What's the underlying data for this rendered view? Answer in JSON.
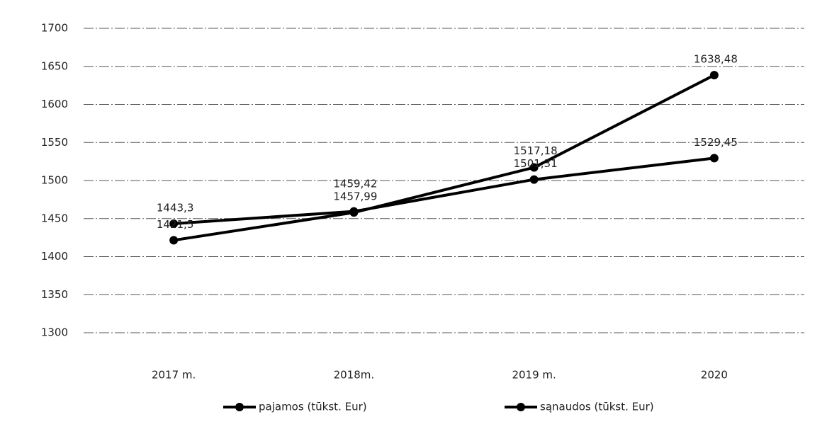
{
  "chart_data": {
    "type": "line",
    "categories": [
      "2017 m.",
      "2018m.",
      "2019 m.",
      "2020"
    ],
    "series": [
      {
        "name": "pajamos (tūkst. Eur)",
        "color": "#000000",
        "values": [
          1421.5,
          1457.99,
          1517.18,
          1638.48
        ],
        "value_labels": [
          "1421,5",
          "1457,99",
          "1517,18",
          "1638,48"
        ]
      },
      {
        "name": "sąnaudos (tūkst. Eur)",
        "color": "#000000",
        "values": [
          1443.3,
          1459.42,
          1501.31,
          1529.45
        ],
        "value_labels": [
          "1443,3",
          "1459,42",
          "1501,31",
          "1529,45"
        ]
      }
    ],
    "ylim": [
      1300,
      1700
    ],
    "yticks": [
      1300,
      1350,
      1400,
      1450,
      1500,
      1550,
      1600,
      1650,
      1700
    ],
    "grid": true,
    "legend": "bottom"
  }
}
